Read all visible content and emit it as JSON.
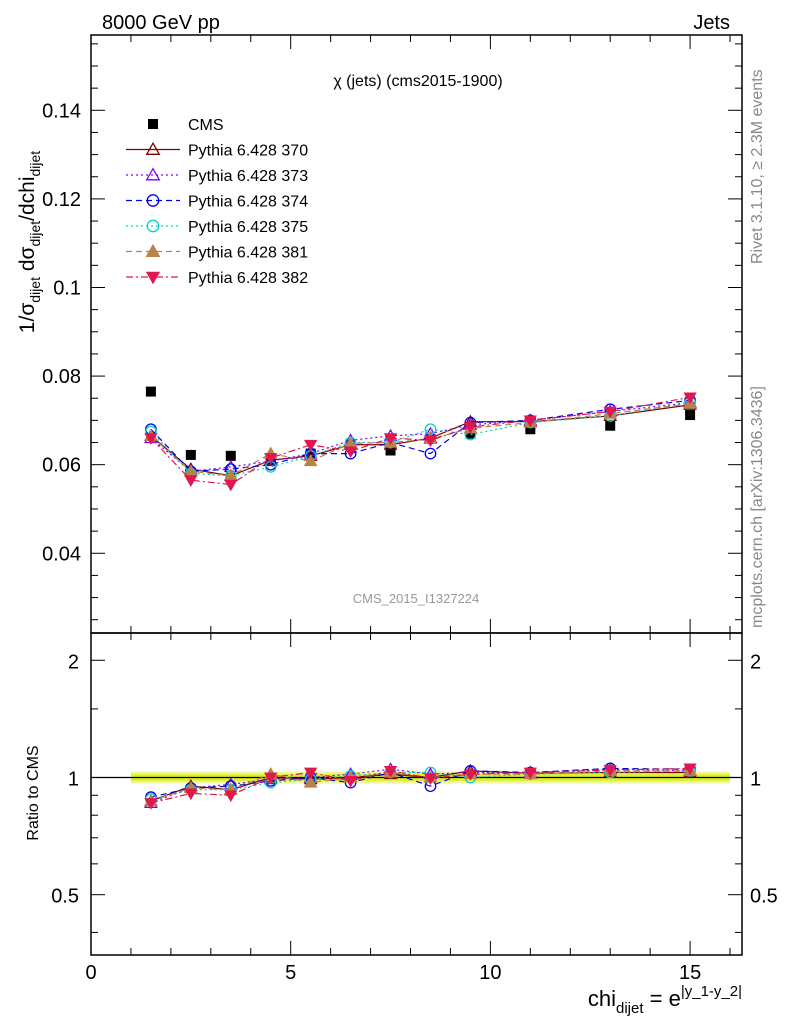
{
  "header": {
    "left": "8000 GeV pp",
    "right": "Jets"
  },
  "side_labels": {
    "rivet": "Rivet 3.1.10, ≥ 2.3M events",
    "mcplots": "mcplots.cern.ch [arXiv:1306.3436]"
  },
  "watermark": "CMS_2015_I1327224",
  "chart_data": [
    {
      "type": "scatter",
      "title": "χ (jets) (cms2015-1900)",
      "xlabel": "chi_dijet = e^|y_1-y_2|",
      "ylabel": "1/σ_dijet dσ_dijet/dchi_dijet",
      "xlim": [
        0,
        16.3
      ],
      "ylim": [
        0.022,
        0.157
      ],
      "yticks": [
        0.04,
        0.06,
        0.08,
        0.1,
        0.12,
        0.14
      ],
      "ytick_labels": [
        "0.04",
        "0.06",
        "0.08",
        "0.1",
        "0.12",
        "0.14"
      ],
      "legend_position": "top-left",
      "x": [
        1.5,
        2.5,
        3.5,
        4.5,
        5.5,
        6.5,
        7.5,
        8.5,
        9.5,
        11,
        13,
        15
      ],
      "series": [
        {
          "name": "CMS",
          "marker": "square-filled",
          "line": "none",
          "color": "#000000",
          "values": [
            0.0765,
            0.0622,
            0.062,
            0.0612,
            0.0625,
            0.0645,
            0.0632,
            0.0658,
            0.067,
            0.068,
            0.0688,
            0.0712
          ]
        },
        {
          "name": "Pythia 6.428 370",
          "marker": "triangle-open",
          "line": "solid",
          "color": "#7f0000",
          "values": [
            0.0665,
            0.059,
            0.0575,
            0.061,
            0.062,
            0.0645,
            0.0645,
            0.066,
            0.0697,
            0.0697,
            0.071,
            0.0735
          ]
        },
        {
          "name": "Pythia 6.428 373",
          "marker": "triangle-open",
          "line": "dotted",
          "color": "#7f00ff",
          "values": [
            0.066,
            0.0585,
            0.0595,
            0.0608,
            0.0625,
            0.0655,
            0.0665,
            0.067,
            0.069,
            0.07,
            0.072,
            0.074
          ]
        },
        {
          "name": "Pythia 6.428 374",
          "marker": "circle-open",
          "line": "dashed",
          "color": "#0000e6",
          "values": [
            0.068,
            0.0585,
            0.059,
            0.06,
            0.0625,
            0.0625,
            0.065,
            0.0625,
            0.0695,
            0.07,
            0.0725,
            0.0745
          ]
        },
        {
          "name": "Pythia 6.428 375",
          "marker": "circle-open",
          "line": "dotted",
          "color": "#00d2c8",
          "values": [
            0.0675,
            0.058,
            0.0575,
            0.0595,
            0.062,
            0.065,
            0.065,
            0.068,
            0.0668,
            0.0695,
            0.071,
            0.074
          ]
        },
        {
          "name": "Pythia 6.428 381",
          "marker": "triangle-filled",
          "line": "dashed",
          "color": "#b8834a",
          "values": [
            0.0665,
            0.0585,
            0.0575,
            0.0625,
            0.0608,
            0.0648,
            0.065,
            0.0658,
            0.0682,
            0.0695,
            0.0715,
            0.0738
          ]
        },
        {
          "name": "Pythia 6.428 382",
          "marker": "triangle-down-filled",
          "line": "dashdot",
          "color": "#e0184e",
          "values": [
            0.066,
            0.0565,
            0.0555,
            0.0615,
            0.0645,
            0.063,
            0.066,
            0.0655,
            0.0685,
            0.07,
            0.072,
            0.0752
          ]
        }
      ]
    },
    {
      "type": "scatter",
      "title": "",
      "xlabel": "chi_dijet = e^|y_1-y_2|",
      "ylabel": "Ratio to CMS",
      "xlim": [
        0,
        16.3
      ],
      "ylim": [
        0.35,
        2.35
      ],
      "scale_y": "log",
      "yticks": [
        0.5,
        1,
        2
      ],
      "ytick_labels": [
        "0.5",
        "1",
        "2"
      ],
      "xticks": [
        0,
        5,
        10,
        15
      ],
      "xtick_labels": [
        "0",
        "5",
        "10",
        "15"
      ],
      "band": {
        "x_range": [
          1,
          16
        ],
        "inner": [
          0.98,
          1.02
        ],
        "outer": [
          0.965,
          1.035
        ],
        "inner_color": "#ddee33",
        "outer_color": "#eef7a0"
      },
      "x": [
        1.5,
        2.5,
        3.5,
        4.5,
        5.5,
        6.5,
        7.5,
        8.5,
        9.5,
        11,
        13,
        15
      ],
      "series": [
        {
          "name": "Pythia 6.428 370",
          "values": [
            0.87,
            0.95,
            0.93,
            1.0,
            0.99,
            1.0,
            1.02,
            1.0,
            1.04,
            1.025,
            1.03,
            1.03
          ]
        },
        {
          "name": "Pythia 6.428 373",
          "values": [
            0.86,
            0.94,
            0.96,
            0.99,
            1.0,
            1.02,
            1.05,
            1.02,
            1.03,
            1.03,
            1.05,
            1.04
          ]
        },
        {
          "name": "Pythia 6.428 374",
          "values": [
            0.89,
            0.94,
            0.95,
            0.98,
            1.0,
            0.97,
            1.03,
            0.95,
            1.04,
            1.03,
            1.055,
            1.05
          ]
        },
        {
          "name": "Pythia 6.428 375",
          "values": [
            0.88,
            0.93,
            0.93,
            0.97,
            0.99,
            1.01,
            1.03,
            1.03,
            1.0,
            1.02,
            1.03,
            1.04
          ]
        },
        {
          "name": "Pythia 6.428 381",
          "values": [
            0.87,
            0.94,
            0.93,
            1.02,
            0.97,
            1.0,
            1.03,
            1.0,
            1.02,
            1.02,
            1.04,
            1.04
          ]
        },
        {
          "name": "Pythia 6.428 382",
          "values": [
            0.86,
            0.91,
            0.9,
            1.0,
            1.03,
            0.98,
            1.04,
            0.995,
            1.02,
            1.03,
            1.045,
            1.055
          ]
        }
      ]
    }
  ]
}
